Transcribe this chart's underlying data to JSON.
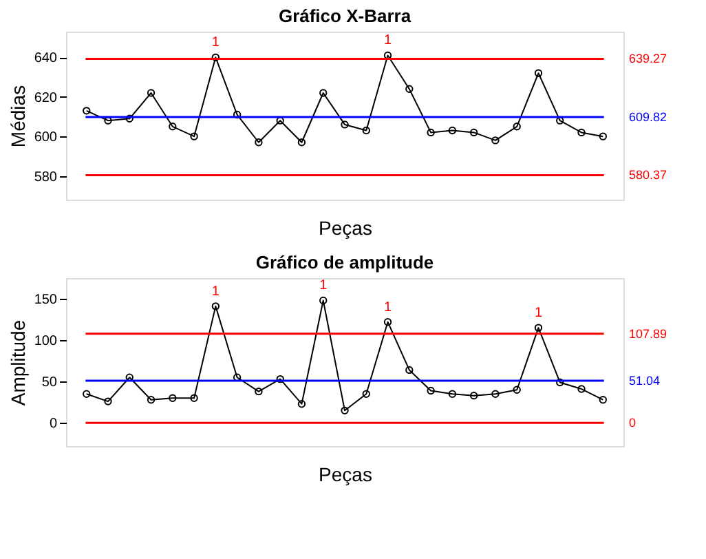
{
  "chart_data": [
    {
      "type": "line",
      "title": "Gráfico X-Barra",
      "xlabel": "Peças",
      "ylabel": "Médias",
      "categories": [
        null,
        null,
        null,
        null,
        null,
        null,
        null,
        null,
        null,
        null,
        null,
        null,
        null,
        null,
        null,
        null,
        null,
        null,
        null,
        null,
        null,
        null,
        null,
        null,
        null
      ],
      "series": [
        {
          "color": "#000000",
          "values": [
            613,
            608,
            609,
            622,
            605,
            600,
            640,
            611,
            597,
            608,
            597,
            622,
            606,
            603,
            641,
            624,
            602,
            603,
            602,
            598,
            605,
            632,
            608,
            602,
            600
          ]
        }
      ],
      "ylim": [
        568,
        653
      ],
      "yticks": [
        580,
        600,
        620,
        640
      ],
      "tick_labels": "y",
      "marker": "circle",
      "line_style": "solid",
      "grid": false,
      "ref_lines": [
        {
          "axis": "y",
          "value": 639.27,
          "label": "639.27",
          "color": "#ff0000"
        },
        {
          "axis": "y",
          "value": 609.82,
          "label": "609.82",
          "color": "#0000ff"
        },
        {
          "axis": "y",
          "value": 580.37,
          "label": "580.37",
          "color": "#ff0000"
        }
      ],
      "annotations": [
        {
          "text": "1",
          "y": 640
        },
        {
          "text": "1",
          "y": 641
        }
      ]
    },
    {
      "type": "line",
      "title": "Gráfico de amplitude",
      "xlabel": "Peças",
      "ylabel": "Amplitude",
      "categories": [
        null,
        null,
        null,
        null,
        null,
        null,
        null,
        null,
        null,
        null,
        null,
        null,
        null,
        null,
        null,
        null,
        null,
        null,
        null,
        null,
        null,
        null,
        null,
        null,
        null
      ],
      "series": [
        {
          "color": "#000000",
          "values": [
            35,
            26,
            55,
            28,
            30,
            30,
            141,
            55,
            38,
            53,
            23,
            148,
            15,
            35,
            122,
            64,
            39,
            35,
            33,
            35,
            40,
            115,
            49,
            41,
            28
          ]
        }
      ],
      "ylim": [
        -28,
        175
      ],
      "yticks": [
        0,
        50,
        100,
        150
      ],
      "tick_labels": "y",
      "marker": "circle",
      "line_style": "solid",
      "grid": false,
      "ref_lines": [
        {
          "axis": "y",
          "value": 107.89,
          "label": "107.89",
          "color": "#ff0000"
        },
        {
          "axis": "y",
          "value": 51.04,
          "label": "51.04",
          "color": "#0000ff"
        },
        {
          "axis": "y",
          "value": 0,
          "label": "0",
          "color": "#ff0000"
        }
      ],
      "annotations": [
        "1",
        "1",
        "1",
        "1"
      ]
    }
  ]
}
